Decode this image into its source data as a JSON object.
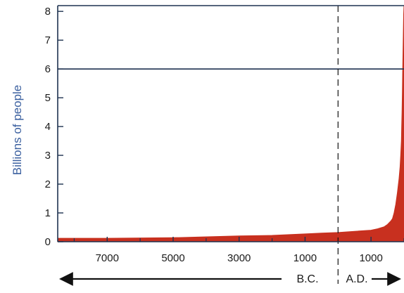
{
  "chart_data": {
    "type": "area",
    "title": "",
    "xlabel": "",
    "ylabel": "Billions of people",
    "ylim": [
      0,
      8.2
    ],
    "yticks": [
      0,
      1,
      2,
      3,
      4,
      5,
      6,
      7,
      8
    ],
    "xlim": [
      -8500,
      2000
    ],
    "xticks": [
      {
        "value": -7000,
        "label": "7000"
      },
      {
        "value": -5000,
        "label": "5000"
      },
      {
        "value": -3000,
        "label": "3000"
      },
      {
        "value": -1000,
        "label": "1000"
      },
      {
        "value": 1000,
        "label": "1000"
      }
    ],
    "divider_year": 0,
    "reference_line_y": 6,
    "era_labels": {
      "bc": "B.C.",
      "ad": "A.D."
    },
    "grid": false,
    "fill_color": "#c8301f",
    "series": [
      {
        "x": [
          -8500,
          -7000,
          -5000,
          -3000,
          -2000,
          -1000,
          -500,
          0,
          500,
          1000,
          1200,
          1400,
          1500,
          1600,
          1650,
          1700,
          1750,
          1800,
          1850,
          1880,
          1900,
          1920,
          1930,
          1940,
          1950,
          1960,
          1970,
          1980,
          1990,
          2000
        ],
        "values": [
          0.12,
          0.12,
          0.14,
          0.2,
          0.22,
          0.27,
          0.3,
          0.32,
          0.36,
          0.4,
          0.45,
          0.52,
          0.6,
          0.72,
          0.8,
          1.0,
          1.3,
          1.7,
          2.2,
          2.6,
          3.0,
          3.5,
          4.0,
          4.5,
          5.2,
          5.9,
          6.6,
          7.3,
          7.9,
          8.2
        ]
      }
    ]
  }
}
